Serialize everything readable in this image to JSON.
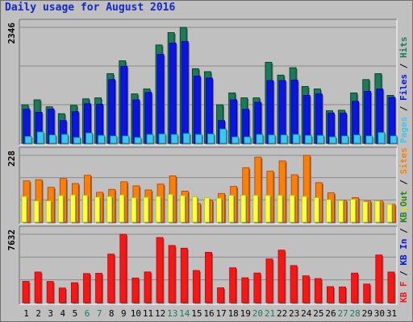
{
  "title": "Daily usage for August 2016",
  "chart_data": {
    "type": "bar",
    "title": "Daily usage for August 2016",
    "categories": [
      "1",
      "2",
      "3",
      "4",
      "5",
      "6",
      "7",
      "8",
      "9",
      "10",
      "11",
      "12",
      "13",
      "14",
      "15",
      "16",
      "17",
      "18",
      "19",
      "20",
      "21",
      "22",
      "23",
      "24",
      "25",
      "26",
      "27",
      "28",
      "29",
      "30",
      "31"
    ],
    "weekend_days": [
      "6",
      "7",
      "13",
      "14",
      "20",
      "21",
      "27",
      "28"
    ],
    "panels": [
      {
        "id": "top",
        "max_label": "2346",
        "ylim": [
          0,
          2346
        ],
        "grid": true,
        "legend_right": [
          "Pages",
          "/",
          "Files",
          "/",
          "Hits"
        ],
        "series": [
          {
            "name": "Hits",
            "color": "#1a7a5c",
            "values": [
              780,
              880,
              740,
              600,
              770,
              900,
              920,
              1410,
              1670,
              1000,
              1100,
              1990,
              2240,
              2346,
              1510,
              1450,
              780,
              1020,
              920,
              920,
              1640,
              1380,
              1530,
              1150,
              1100,
              660,
              670,
              1020,
              1290,
              1410,
              970
            ]
          },
          {
            "name": "Files",
            "color": "#0a14e6",
            "values": [
              690,
              630,
              690,
              460,
              640,
              800,
              790,
              1290,
              1560,
              880,
              1030,
              1800,
              2030,
              2060,
              1360,
              1320,
              460,
              880,
              690,
              830,
              1270,
              1270,
              1280,
              970,
              1000,
              610,
              610,
              850,
              1050,
              1100,
              930
            ]
          },
          {
            "name": "Pages",
            "color": "#3ac8f0",
            "values": [
              140,
              230,
              170,
              180,
              120,
              210,
              160,
              150,
              150,
              120,
              180,
              190,
              180,
              200,
              180,
              190,
              290,
              130,
              130,
              180,
              170,
              170,
              180,
              160,
              160,
              130,
              150,
              170,
              150,
              220,
              150
            ]
          }
        ]
      },
      {
        "id": "middle",
        "max_label": "228",
        "ylim": [
          0,
          228
        ],
        "grid": true,
        "legend_right": [
          "Visits",
          "/",
          "Sites"
        ],
        "series": [
          {
            "name": "Sites",
            "color": "#ff8000",
            "values": [
              141,
              145,
              119,
              149,
              132,
              160,
              102,
              112,
              138,
              124,
              110,
              130,
              158,
              106,
              64,
              75,
              98,
              122,
              186,
              222,
              174,
              209,
              162,
              228,
              135,
              100,
              74,
              84,
              72,
              72,
              61
            ]
          },
          {
            "name": "Visits",
            "color": "#ffff40",
            "values": [
              88,
              73,
              73,
              91,
              93,
              92,
              86,
              88,
              93,
              84,
              85,
              88,
              95,
              91,
              87,
              83,
              82,
              92,
              92,
              92,
              92,
              92,
              92,
              88,
              84,
              77,
              74,
              78,
              70,
              72,
              61
            ]
          }
        ]
      },
      {
        "id": "bottom",
        "max_label": "7632",
        "ylim": [
          0,
          7632
        ],
        "grid": true,
        "legend_right": [
          "KB F",
          "/",
          "KB In",
          "/",
          "KB Out"
        ],
        "series": [
          {
            "name": "KB F",
            "color": "#ff1414",
            "values": [
              2380,
              3420,
              2370,
              1640,
              2230,
              3250,
              3280,
              5420,
              7632,
              2750,
              3430,
              7270,
              6380,
              6080,
              3590,
              5620,
              1660,
              3890,
              2780,
              3310,
              4880,
              5860,
              4140,
              3000,
              2690,
              1790,
              1750,
              3300,
              2080,
              5320,
              3420
            ]
          }
        ]
      }
    ]
  },
  "colors": {
    "background": "#c0c0c0",
    "plot": "#c0c0c0",
    "title": "#1428c8",
    "weekend_label": "#1a7a5c",
    "weekday_label": "#000000"
  }
}
